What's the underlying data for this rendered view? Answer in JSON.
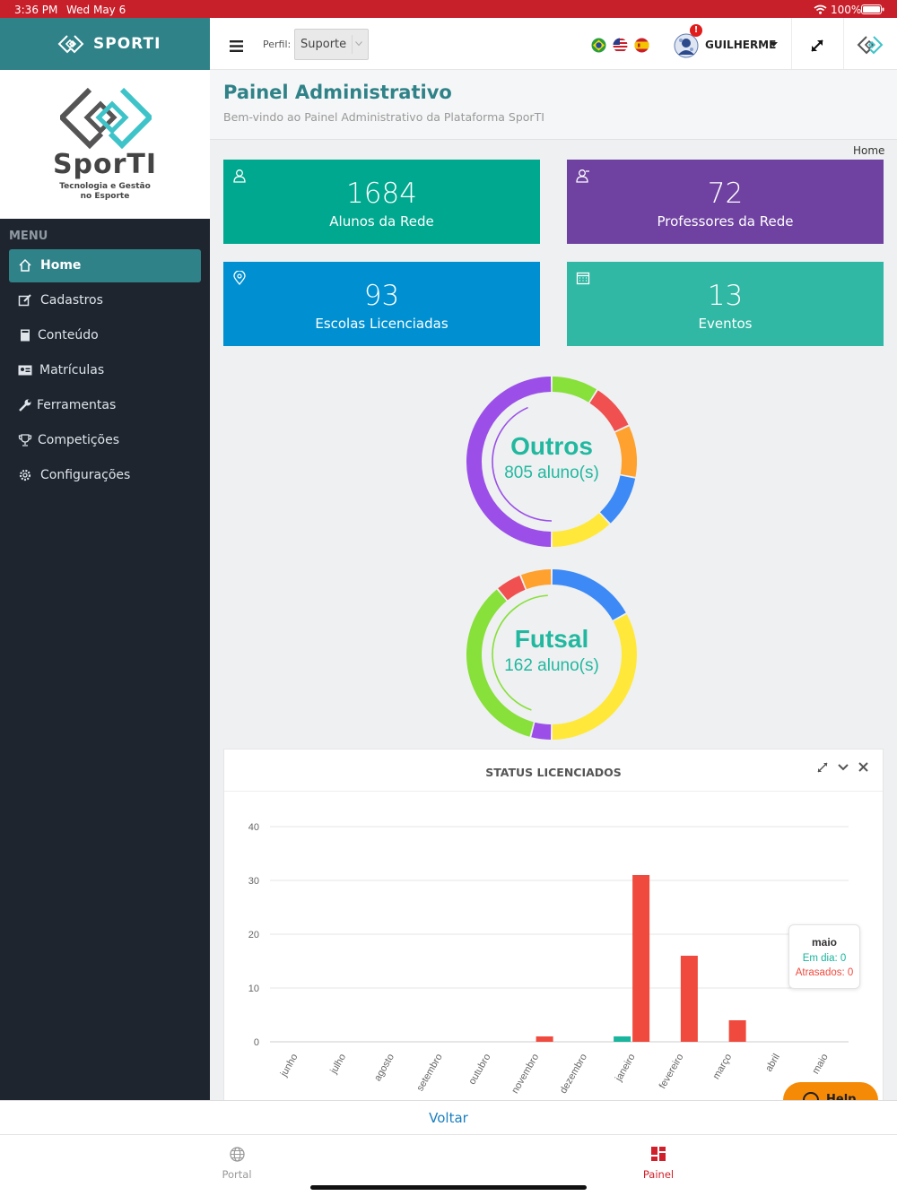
{
  "status_bar": {
    "time": "3:36 PM",
    "date": "Wed May 6",
    "battery": "100%"
  },
  "brand": {
    "name": "SPORTI",
    "logo_text": "SporTI",
    "logo_tagline_1": "Tecnologia e Gestão",
    "logo_tagline_2": "no Esporte"
  },
  "menu": {
    "header": "MENU",
    "items": [
      {
        "label": "Home",
        "icon": "home-icon",
        "active": true
      },
      {
        "label": "Cadastros",
        "icon": "edit-icon"
      },
      {
        "label": "Conteúdo",
        "icon": "book-icon"
      },
      {
        "label": "Matrículas",
        "icon": "id-card-icon"
      },
      {
        "label": "Ferramentas",
        "icon": "wrench-icon"
      },
      {
        "label": "Competições",
        "icon": "trophy-icon"
      },
      {
        "label": "Configurações",
        "icon": "gear-icon"
      }
    ]
  },
  "topbar": {
    "perfil_label": "Perfil:",
    "perfil_value": "Suporte",
    "user_name": "GUILHERME",
    "notification_badge": "!",
    "languages": [
      "pt-BR",
      "en-US",
      "es-ES"
    ]
  },
  "page": {
    "title": "Painel Administrativo",
    "subtitle": "Bem-vindo ao Painel Administrativo da Plataforma SporTI",
    "breadcrumb": "Home"
  },
  "cards": [
    {
      "value": "1684",
      "label": "Alunos da Rede",
      "color": "#00a88f",
      "icon": "user-icon"
    },
    {
      "value": "72",
      "label": "Professores da Rede",
      "color": "#6f42a1",
      "icon": "teacher-icon"
    },
    {
      "value": "93",
      "label": "Escolas Licenciadas",
      "color": "#0090d1",
      "icon": "map-pin-icon"
    },
    {
      "value": "13",
      "label": "Eventos",
      "color": "#31b8a4",
      "icon": "calendar-icon"
    }
  ],
  "donuts": [
    {
      "title": "Outros",
      "subtitle": "805 aluno(s)",
      "segments": [
        {
          "color": "#88e03a",
          "value": 9
        },
        {
          "color": "#f05050",
          "value": 9
        },
        {
          "color": "#ffa12f",
          "value": 10
        },
        {
          "color": "#3d8af7",
          "value": 10
        },
        {
          "color": "#ffe83a",
          "value": 12
        },
        {
          "color": "#9b4fe8",
          "value": 50
        }
      ]
    },
    {
      "title": "Futsal",
      "subtitle": "162 aluno(s)",
      "segments": [
        {
          "color": "#3d8af7",
          "value": 17
        },
        {
          "color": "#ffe83a",
          "value": 33
        },
        {
          "color": "#9b4fe8",
          "value": 4
        },
        {
          "color": "#88e03a",
          "value": 35
        },
        {
          "color": "#f05050",
          "value": 5
        },
        {
          "color": "#ffa12f",
          "value": 6
        }
      ]
    }
  ],
  "chart_panel": {
    "title": "STATUS LICENCIADOS"
  },
  "chart_data": {
    "type": "bar",
    "categories": [
      "junho",
      "julho",
      "agosto",
      "setembro",
      "outubro",
      "novembro",
      "dezembro",
      "janeiro",
      "fevereiro",
      "março",
      "abril",
      "maio"
    ],
    "series": [
      {
        "name": "Em dia",
        "color": "#19b59c",
        "values": [
          0,
          0,
          0,
          0,
          0,
          0,
          0,
          1,
          0,
          0,
          0,
          0
        ]
      },
      {
        "name": "Atrasados",
        "color": "#f04a3e",
        "values": [
          0,
          0,
          0,
          0,
          0,
          1,
          0,
          31,
          16,
          4,
          0,
          0
        ]
      }
    ],
    "ylim": [
      0,
      40
    ],
    "yticks": [
      0,
      10,
      20,
      30,
      40
    ],
    "grid": true,
    "tooltip": {
      "title": "maio",
      "line1": "Em dia: 0",
      "line2": "Atrasados: 0"
    }
  },
  "bottom": {
    "back_label": "Voltar",
    "tabs": [
      {
        "label": "Portal",
        "icon": "globe-icon"
      },
      {
        "label": "Painel",
        "icon": "dashboard-icon",
        "active": true
      }
    ],
    "help_label": "Help"
  }
}
